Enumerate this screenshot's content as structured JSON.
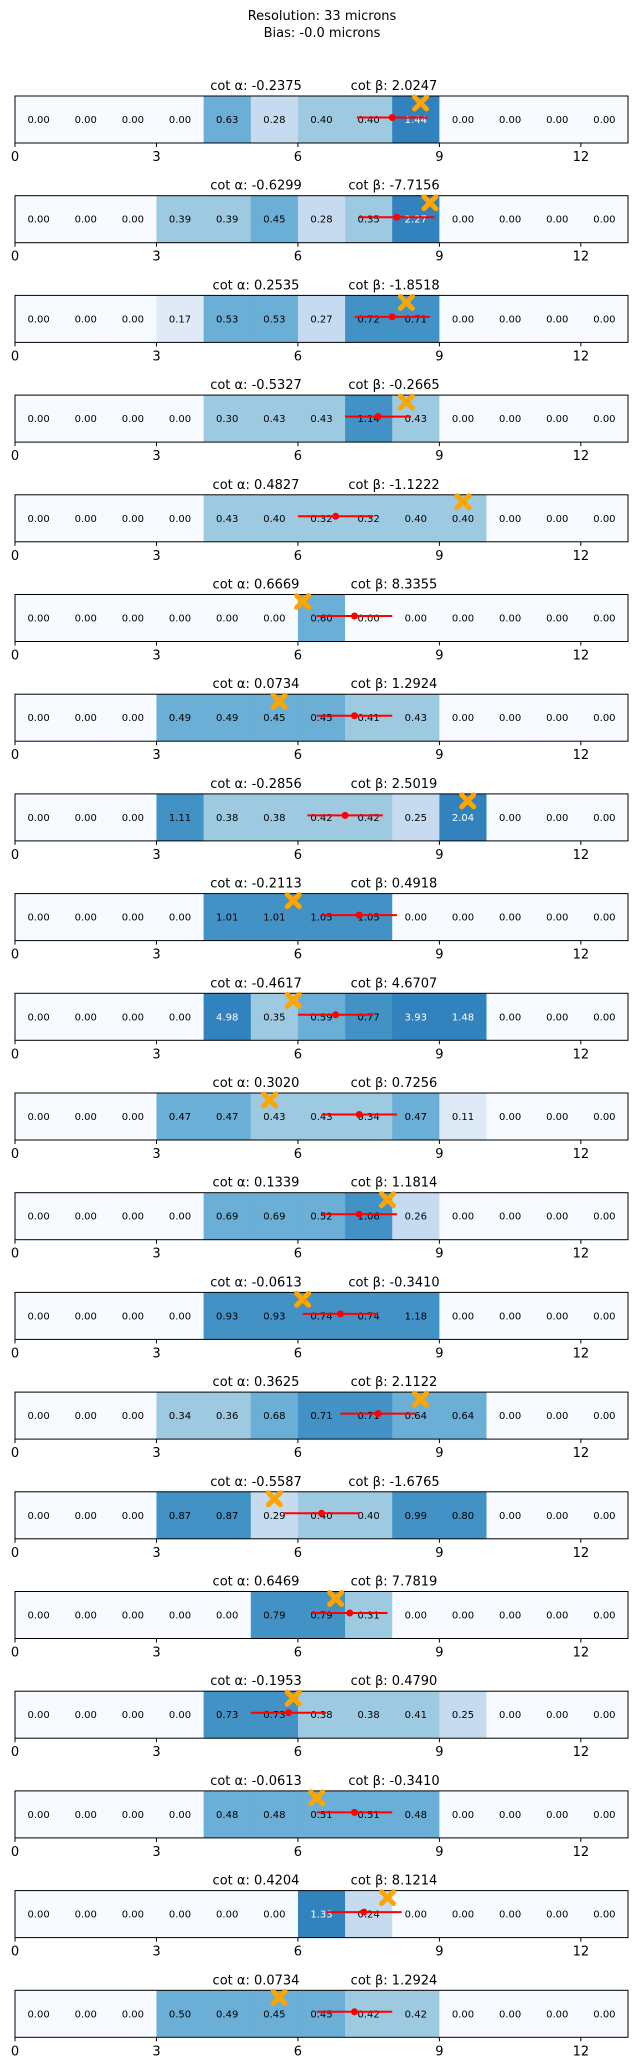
{
  "header": {
    "line1": "Resolution: 33 microns",
    "line2": "Bias: -0.0 microns"
  },
  "chart_data": [
    {
      "type": "heatmap",
      "title_alpha": "cot α: -0.2375",
      "title_beta": "cot β: 2.0247",
      "values": [
        "0.00",
        "0.00",
        "0.00",
        "0.00",
        "0.63",
        "0.28",
        "0.40",
        "0.40",
        "1.44",
        "0.00",
        "0.00",
        "0.00",
        "0.00"
      ],
      "true_x": 8.6,
      "meas_x": 8.0,
      "meas_err": 0.75,
      "xticks": [
        0,
        3,
        6,
        9,
        12
      ],
      "xlim": [
        0,
        13
      ]
    },
    {
      "type": "heatmap",
      "title_alpha": "cot α: -0.6299",
      "title_beta": "cot β: -7.7156",
      "values": [
        "0.00",
        "0.00",
        "0.00",
        "0.39",
        "0.39",
        "0.45",
        "0.28",
        "0.35",
        "2.27",
        "0.00",
        "0.00",
        "0.00",
        "0.00"
      ],
      "true_x": 8.8,
      "meas_x": 8.1,
      "meas_err": 0.8,
      "xticks": [
        0,
        3,
        6,
        9,
        12
      ],
      "xlim": [
        0,
        13
      ]
    },
    {
      "type": "heatmap",
      "title_alpha": "cot α: 0.2535",
      "title_beta": "cot β: -1.8518",
      "values": [
        "0.00",
        "0.00",
        "0.00",
        "0.17",
        "0.53",
        "0.53",
        "0.27",
        "0.72",
        "0.71",
        "0.00",
        "0.00",
        "0.00",
        "0.00"
      ],
      "true_x": 8.3,
      "meas_x": 8.0,
      "meas_err": 0.8,
      "xticks": [
        0,
        3,
        6,
        9,
        12
      ],
      "xlim": [
        0,
        13
      ]
    },
    {
      "type": "heatmap",
      "title_alpha": "cot α: -0.5327",
      "title_beta": "cot β: -0.2665",
      "values": [
        "0.00",
        "0.00",
        "0.00",
        "0.00",
        "0.30",
        "0.43",
        "0.43",
        "1.14",
        "0.43",
        "0.00",
        "0.00",
        "0.00",
        "0.00"
      ],
      "true_x": 8.3,
      "meas_x": 7.7,
      "meas_err": 0.7,
      "xticks": [
        0,
        3,
        6,
        9,
        12
      ],
      "xlim": [
        0,
        13
      ]
    },
    {
      "type": "heatmap",
      "title_alpha": "cot α: 0.4827",
      "title_beta": "cot β: -1.1222",
      "values": [
        "0.00",
        "0.00",
        "0.00",
        "0.00",
        "0.43",
        "0.40",
        "0.32",
        "0.32",
        "0.40",
        "0.40",
        "0.00",
        "0.00",
        "0.00"
      ],
      "true_x": 9.5,
      "meas_x": 6.8,
      "meas_err": 0.8,
      "xticks": [
        0,
        3,
        6,
        9,
        12
      ],
      "xlim": [
        0,
        13
      ]
    },
    {
      "type": "heatmap",
      "title_alpha": "cot α: 0.6669",
      "title_beta": "cot β: 8.3355",
      "values": [
        "0.00",
        "0.00",
        "0.00",
        "0.00",
        "0.00",
        "0.00",
        "0.60",
        "0.00",
        "0.00",
        "0.00",
        "0.00",
        "0.00",
        "0.00"
      ],
      "true_x": 6.1,
      "meas_x": 7.2,
      "meas_err": 0.8,
      "xticks": [
        0,
        3,
        6,
        9,
        12
      ],
      "xlim": [
        0,
        13
      ]
    },
    {
      "type": "heatmap",
      "title_alpha": "cot α: 0.0734",
      "title_beta": "cot β: 1.2924",
      "values": [
        "0.00",
        "0.00",
        "0.00",
        "0.49",
        "0.49",
        "0.45",
        "0.45",
        "0.41",
        "0.43",
        "0.00",
        "0.00",
        "0.00",
        "0.00"
      ],
      "true_x": 5.6,
      "meas_x": 7.2,
      "meas_err": 0.8,
      "xticks": [
        0,
        3,
        6,
        9,
        12
      ],
      "xlim": [
        0,
        13
      ]
    },
    {
      "type": "heatmap",
      "title_alpha": "cot α: -0.2856",
      "title_beta": "cot β: 2.5019",
      "values": [
        "0.00",
        "0.00",
        "0.00",
        "1.11",
        "0.38",
        "0.38",
        "0.42",
        "0.42",
        "0.25",
        "2.04",
        "0.00",
        "0.00",
        "0.00"
      ],
      "true_x": 9.6,
      "meas_x": 7.0,
      "meas_err": 0.8,
      "xticks": [
        0,
        3,
        6,
        9,
        12
      ],
      "xlim": [
        0,
        13
      ]
    },
    {
      "type": "heatmap",
      "title_alpha": "cot α: -0.2113",
      "title_beta": "cot β: 0.4918",
      "values": [
        "0.00",
        "0.00",
        "0.00",
        "0.00",
        "1.01",
        "1.01",
        "1.05",
        "1.05",
        "0.00",
        "0.00",
        "0.00",
        "0.00",
        "0.00"
      ],
      "true_x": 5.9,
      "meas_x": 7.3,
      "meas_err": 0.8,
      "xticks": [
        0,
        3,
        6,
        9,
        12
      ],
      "xlim": [
        0,
        13
      ]
    },
    {
      "type": "heatmap",
      "title_alpha": "cot α: -0.4617",
      "title_beta": "cot β: 4.6707",
      "values": [
        "0.00",
        "0.00",
        "0.00",
        "0.00",
        "4.98",
        "0.35",
        "0.59",
        "0.77",
        "3.93",
        "1.48",
        "0.00",
        "0.00",
        "0.00"
      ],
      "true_x": 5.9,
      "meas_x": 6.8,
      "meas_err": 0.8,
      "xticks": [
        0,
        3,
        6,
        9,
        12
      ],
      "xlim": [
        0,
        13
      ]
    },
    {
      "type": "heatmap",
      "title_alpha": "cot α: 0.3020",
      "title_beta": "cot β: 0.7256",
      "values": [
        "0.00",
        "0.00",
        "0.00",
        "0.47",
        "0.47",
        "0.43",
        "0.43",
        "0.34",
        "0.47",
        "0.11",
        "0.00",
        "0.00",
        "0.00"
      ],
      "true_x": 5.4,
      "meas_x": 7.3,
      "meas_err": 0.8,
      "xticks": [
        0,
        3,
        6,
        9,
        12
      ],
      "xlim": [
        0,
        13
      ]
    },
    {
      "type": "heatmap",
      "title_alpha": "cot α: 0.1339",
      "title_beta": "cot β: 1.1814",
      "values": [
        "0.00",
        "0.00",
        "0.00",
        "0.00",
        "0.69",
        "0.69",
        "0.52",
        "1.06",
        "0.26",
        "0.00",
        "0.00",
        "0.00",
        "0.00"
      ],
      "true_x": 7.9,
      "meas_x": 7.3,
      "meas_err": 0.8,
      "xticks": [
        0,
        3,
        6,
        9,
        12
      ],
      "xlim": [
        0,
        13
      ]
    },
    {
      "type": "heatmap",
      "title_alpha": "cot α: -0.0613",
      "title_beta": "cot β: -0.3410",
      "values": [
        "0.00",
        "0.00",
        "0.00",
        "0.00",
        "0.93",
        "0.93",
        "0.74",
        "0.74",
        "1.18",
        "0.00",
        "0.00",
        "0.00",
        "0.00"
      ],
      "true_x": 6.1,
      "meas_x": 6.9,
      "meas_err": 0.8,
      "xticks": [
        0,
        3,
        6,
        9,
        12
      ],
      "xlim": [
        0,
        13
      ]
    },
    {
      "type": "heatmap",
      "title_alpha": "cot α: 0.3625",
      "title_beta": "cot β: 2.1122",
      "values": [
        "0.00",
        "0.00",
        "0.00",
        "0.34",
        "0.36",
        "0.68",
        "0.71",
        "0.71",
        "0.64",
        "0.64",
        "0.00",
        "0.00",
        "0.00"
      ],
      "true_x": 8.6,
      "meas_x": 7.7,
      "meas_err": 0.8,
      "xticks": [
        0,
        3,
        6,
        9,
        12
      ],
      "xlim": [
        0,
        13
      ]
    },
    {
      "type": "heatmap",
      "title_alpha": "cot α: -0.5587",
      "title_beta": "cot β: -1.6765",
      "values": [
        "0.00",
        "0.00",
        "0.00",
        "0.87",
        "0.87",
        "0.29",
        "0.40",
        "0.40",
        "0.99",
        "0.80",
        "0.00",
        "0.00",
        "0.00"
      ],
      "true_x": 5.5,
      "meas_x": 6.5,
      "meas_err": 0.8,
      "xticks": [
        0,
        3,
        6,
        9,
        12
      ],
      "xlim": [
        0,
        13
      ]
    },
    {
      "type": "heatmap",
      "title_alpha": "cot α: 0.6469",
      "title_beta": "cot β: 7.7819",
      "values": [
        "0.00",
        "0.00",
        "0.00",
        "0.00",
        "0.00",
        "0.79",
        "0.79",
        "0.31",
        "0.00",
        "0.00",
        "0.00",
        "0.00",
        "0.00"
      ],
      "true_x": 6.8,
      "meas_x": 7.1,
      "meas_err": 0.8,
      "xticks": [
        0,
        3,
        6,
        9,
        12
      ],
      "xlim": [
        0,
        13
      ]
    },
    {
      "type": "heatmap",
      "title_alpha": "cot α: -0.1953",
      "title_beta": "cot β: 0.4790",
      "values": [
        "0.00",
        "0.00",
        "0.00",
        "0.00",
        "0.73",
        "0.73",
        "0.38",
        "0.38",
        "0.41",
        "0.25",
        "0.00",
        "0.00",
        "0.00"
      ],
      "true_x": 5.9,
      "meas_x": 5.8,
      "meas_err": 0.8,
      "xticks": [
        0,
        3,
        6,
        9,
        12
      ],
      "xlim": [
        0,
        13
      ]
    },
    {
      "type": "heatmap",
      "title_alpha": "cot α: -0.0613",
      "title_beta": "cot β: -0.3410",
      "values": [
        "0.00",
        "0.00",
        "0.00",
        "0.00",
        "0.48",
        "0.48",
        "0.51",
        "0.51",
        "0.48",
        "0.00",
        "0.00",
        "0.00",
        "0.00"
      ],
      "true_x": 6.4,
      "meas_x": 7.2,
      "meas_err": 0.8,
      "xticks": [
        0,
        3,
        6,
        9,
        12
      ],
      "xlim": [
        0,
        13
      ]
    },
    {
      "type": "heatmap",
      "title_alpha": "cot α: 0.4204",
      "title_beta": "cot β: 8.1214",
      "values": [
        "0.00",
        "0.00",
        "0.00",
        "0.00",
        "0.00",
        "0.00",
        "1.33",
        "0.24",
        "0.00",
        "0.00",
        "0.00",
        "0.00",
        "0.00"
      ],
      "true_x": 7.9,
      "meas_x": 7.4,
      "meas_err": 0.8,
      "xticks": [
        0,
        3,
        6,
        9,
        12
      ],
      "xlim": [
        0,
        13
      ]
    },
    {
      "type": "heatmap",
      "title_alpha": "cot α: 0.0734",
      "title_beta": "cot β: 1.2924",
      "values": [
        "0.00",
        "0.00",
        "0.00",
        "0.50",
        "0.49",
        "0.45",
        "0.45",
        "0.42",
        "0.42",
        "0.00",
        "0.00",
        "0.00",
        "0.00"
      ],
      "true_x": 5.6,
      "meas_x": 7.2,
      "meas_err": 0.8,
      "xticks": [
        0,
        3,
        6,
        9,
        12
      ],
      "xlim": [
        0,
        13
      ]
    }
  ],
  "colors": {
    "zero": "#f7fbff",
    "low": "#deebf7",
    "midlow": "#c6dbef",
    "mid": "#9ecae1",
    "midhigh": "#6baed6",
    "high": "#4292c6",
    "top": "#3182bd",
    "measured": "#ff0000",
    "true": "#ffa500"
  }
}
